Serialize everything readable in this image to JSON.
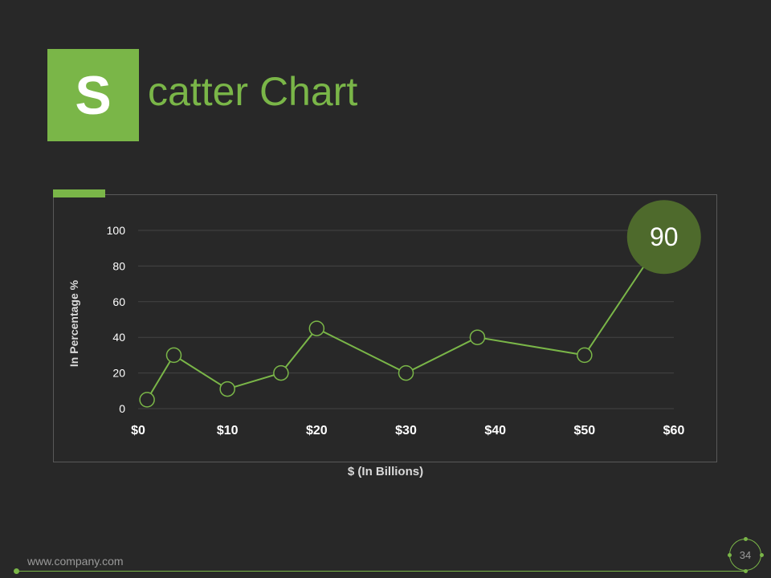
{
  "slide": {
    "title_initial": "S",
    "title_rest": "catter Chart",
    "footer_url": "www.company.com",
    "page_number": "34"
  },
  "colors": {
    "background": "#282828",
    "accent": "#7ab648",
    "highlight_bubble": "#4e6a2c",
    "gridline": "#444444",
    "axis_text": "#ffffff",
    "axis_title": "#d9d9d9"
  },
  "chart_data": {
    "type": "scatter",
    "title": "",
    "xlabel": "$ (In Billions)",
    "ylabel": "In Percentage %",
    "xlim": [
      0,
      60
    ],
    "ylim": [
      0,
      100
    ],
    "x_ticks": [
      0,
      10,
      20,
      30,
      40,
      50,
      60
    ],
    "x_tick_labels": [
      "$0",
      "$10",
      "$20",
      "$30",
      "$40",
      "$50",
      "$60"
    ],
    "y_ticks": [
      0,
      20,
      40,
      60,
      80,
      100
    ],
    "y_tick_labels": [
      "0",
      "20",
      "40",
      "60",
      "80",
      "100"
    ],
    "grid": true,
    "lines_connecting_points": true,
    "series": [
      {
        "x": [
          1,
          4,
          10,
          16,
          20,
          30,
          38,
          50,
          58
        ],
        "y": [
          5,
          30,
          11,
          20,
          45,
          20,
          40,
          30,
          90
        ]
      }
    ],
    "annotation": {
      "label": "90",
      "x": 58,
      "y": 90
    }
  }
}
